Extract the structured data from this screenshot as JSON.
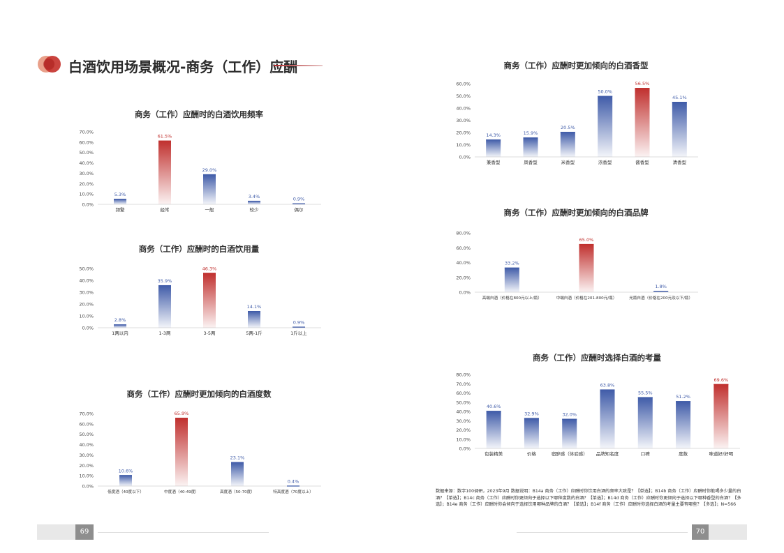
{
  "page": {
    "title": "白酒饮用场景概况-商务（工作）应酬",
    "page_left": "69",
    "page_right": "70",
    "footnote": "数据来源：数字100调研，2023年9月 数据说明：B14a 商务（工作）应酬时你饮用白酒的频率大致是？【单选】；B14b 商务（工作）应酬时你能喝多少量的白酒？【单选】；B14c 商务（工作）应酬时你更倾向于选择以下哪种度数的白酒？【单选】；B14d 商务（工作）应酬时你更倾向于选择以下哪种香型的白酒？【多选】；B14e 商务（工作）应酬时你会倾向于选择饮用哪种品牌的白酒？【单选】；B14f 商务（工作）应酬时你选择白酒的考量主要有哪些？【多选】；N=566"
  },
  "colors": {
    "blue": "#3f5ba8",
    "red": "#c0302e",
    "highlight_label": "#c0302e",
    "normal_label": "#3f5ba8"
  },
  "chart_data": [
    {
      "id": "freq",
      "type": "bar",
      "title": "商务（工作）应酬时的白酒饮用频率",
      "categories": [
        "频繁",
        "经常",
        "一般",
        "较少",
        "偶尔"
      ],
      "values": [
        5.3,
        61.5,
        29.0,
        3.4,
        0.9
      ],
      "highlight": 1,
      "ylim": [
        0,
        70
      ],
      "yticks": [
        0,
        10,
        20,
        30,
        40,
        50,
        60,
        70
      ]
    },
    {
      "id": "amount",
      "type": "bar",
      "title": "商务（工作）应酬时的白酒饮用量",
      "categories": [
        "1两以内",
        "1-3两",
        "3-5两",
        "5两-1斤",
        "1斤以上"
      ],
      "values": [
        2.8,
        35.9,
        46.3,
        14.1,
        0.9
      ],
      "highlight": 2,
      "ylim": [
        0,
        50
      ],
      "yticks": [
        0,
        10,
        20,
        30,
        40,
        50
      ]
    },
    {
      "id": "degree",
      "type": "bar",
      "title": "商务（工作）应酬时更加倾向的白酒度数",
      "categories": [
        "低度酒（40度以下）",
        "中度酒（40-49度）",
        "高度酒（50-70度）",
        "特高度酒（70度以上）"
      ],
      "values": [
        10.6,
        65.9,
        23.1,
        0.4
      ],
      "highlight": 1,
      "ylim": [
        0,
        70
      ],
      "yticks": [
        0,
        10,
        20,
        30,
        40,
        50,
        60,
        70
      ]
    },
    {
      "id": "aroma",
      "type": "bar",
      "title": "商务（工作）应酬时更加倾向的白酒香型",
      "categories": [
        "兼香型",
        "凤香型",
        "米香型",
        "浓香型",
        "酱香型",
        "清香型"
      ],
      "values": [
        14.3,
        15.9,
        20.5,
        50.0,
        56.5,
        45.1
      ],
      "highlight": 4,
      "ylim": [
        0,
        60
      ],
      "yticks": [
        0,
        10,
        20,
        30,
        40,
        50,
        60
      ]
    },
    {
      "id": "brand",
      "type": "bar",
      "title": "商务（工作）应酬时更加倾向的白酒品牌",
      "categories": [
        "高端白酒（价格在800元以上/瓶）",
        "中端白酒（价格在201-800元/瓶）",
        "光瓶白酒（价格在200元及以下/瓶）"
      ],
      "values": [
        33.2,
        65.0,
        1.8
      ],
      "highlight": 1,
      "ylim": [
        0,
        80
      ],
      "yticks": [
        0,
        20,
        40,
        60,
        80
      ]
    },
    {
      "id": "factors",
      "type": "bar",
      "title": "商务（工作）应酬时选择白酒的考量",
      "categories": [
        "包装精美",
        "价格",
        "宿醉感（体验感）",
        "品牌知名度",
        "口碑",
        "度数",
        "味道好/好喝"
      ],
      "values": [
        40.6,
        32.9,
        32.0,
        63.8,
        55.5,
        51.2,
        69.6
      ],
      "highlight": 6,
      "ylim": [
        0,
        80
      ],
      "yticks": [
        0,
        10,
        20,
        30,
        40,
        50,
        60,
        70,
        80
      ]
    }
  ]
}
